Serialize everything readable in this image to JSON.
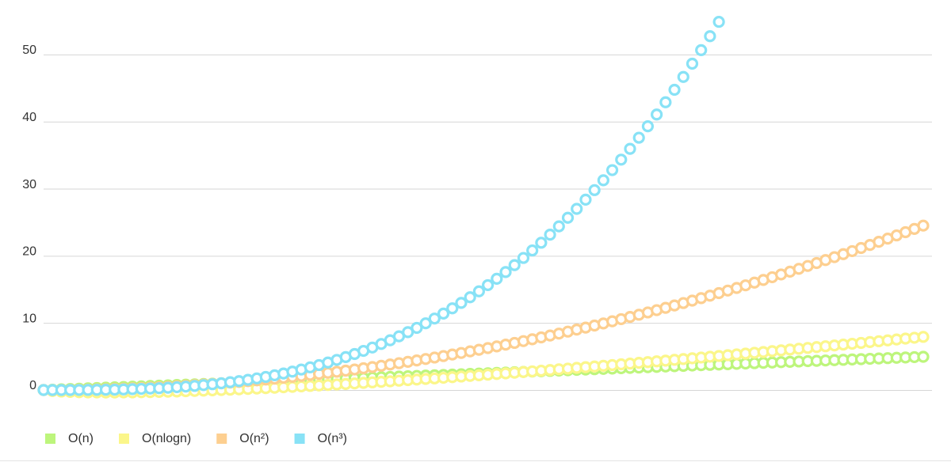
{
  "chart_data": {
    "type": "line",
    "markers": "circle",
    "grid": true,
    "legend": "bottom-left",
    "ylim": [
      0,
      56
    ],
    "yticks": [
      0,
      10,
      20,
      30,
      40,
      50
    ],
    "xlim": [
      0,
      4.95
    ],
    "x": [
      0,
      0.05,
      0.1,
      0.15,
      0.2,
      0.25,
      0.3,
      0.35,
      0.4,
      0.45,
      0.5,
      0.55,
      0.6,
      0.65,
      0.7,
      0.75,
      0.8,
      0.85,
      0.9,
      0.95,
      1,
      1.05,
      1.1,
      1.15,
      1.2,
      1.25,
      1.3,
      1.35,
      1.4,
      1.45,
      1.5,
      1.55,
      1.6,
      1.65,
      1.7,
      1.75,
      1.8,
      1.85,
      1.9,
      1.95,
      2,
      2.05,
      2.1,
      2.15,
      2.2,
      2.25,
      2.3,
      2.35,
      2.4,
      2.45,
      2.5,
      2.55,
      2.6,
      2.65,
      2.7,
      2.75,
      2.8,
      2.85,
      2.9,
      2.95,
      3,
      3.05,
      3.1,
      3.15,
      3.2,
      3.25,
      3.3,
      3.35,
      3.4,
      3.45,
      3.5,
      3.55,
      3.6,
      3.65,
      3.7,
      3.75,
      3.8,
      3.85,
      3.9,
      3.95,
      4,
      4.05,
      4.1,
      4.15,
      4.2,
      4.25,
      4.3,
      4.35,
      4.4,
      4.45,
      4.5,
      4.55,
      4.6,
      4.65,
      4.7,
      4.75,
      4.8,
      4.85,
      4.9,
      4.95
    ],
    "series": [
      {
        "name": "O(n)",
        "color": "#bdf57c",
        "values": [
          0,
          0.05,
          0.1,
          0.15,
          0.2,
          0.25,
          0.3,
          0.35,
          0.4,
          0.45,
          0.5,
          0.55,
          0.6,
          0.65,
          0.7,
          0.75,
          0.8,
          0.85,
          0.9,
          0.95,
          1,
          1.05,
          1.1,
          1.15,
          1.2,
          1.25,
          1.3,
          1.35,
          1.4,
          1.45,
          1.5,
          1.55,
          1.6,
          1.65,
          1.7,
          1.75,
          1.8,
          1.85,
          1.9,
          1.95,
          2,
          2.05,
          2.1,
          2.15,
          2.2,
          2.25,
          2.3,
          2.35,
          2.4,
          2.45,
          2.5,
          2.55,
          2.6,
          2.65,
          2.7,
          2.75,
          2.8,
          2.85,
          2.9,
          2.95,
          3,
          3.05,
          3.1,
          3.15,
          3.2,
          3.25,
          3.3,
          3.35,
          3.4,
          3.45,
          3.5,
          3.55,
          3.6,
          3.65,
          3.7,
          3.75,
          3.8,
          3.85,
          3.9,
          3.95,
          4,
          4.05,
          4.1,
          4.15,
          4.2,
          4.25,
          4.3,
          4.35,
          4.4,
          4.45,
          4.5,
          4.55,
          4.6,
          4.65,
          4.7,
          4.75,
          4.8,
          4.85,
          4.9,
          4.95
        ]
      },
      {
        "name": "O(nlogn)",
        "color": "#fbf68a",
        "values": [
          0,
          -0.15,
          -0.23,
          -0.28,
          -0.32,
          -0.35,
          -0.36,
          -0.37,
          -0.37,
          -0.36,
          -0.35,
          -0.33,
          -0.31,
          -0.28,
          -0.25,
          -0.22,
          -0.18,
          -0.14,
          -0.09,
          -0.05,
          0,
          0.05,
          0.1,
          0.16,
          0.22,
          0.28,
          0.34,
          0.41,
          0.47,
          0.54,
          0.61,
          0.68,
          0.75,
          0.83,
          0.9,
          0.98,
          1.06,
          1.14,
          1.22,
          1.3,
          1.39,
          1.47,
          1.56,
          1.65,
          1.73,
          1.82,
          1.92,
          2.01,
          2.1,
          2.2,
          2.29,
          2.39,
          2.48,
          2.58,
          2.68,
          2.78,
          2.88,
          2.98,
          3.09,
          3.19,
          3.3,
          3.4,
          3.51,
          3.61,
          3.72,
          3.83,
          3.94,
          4.05,
          4.16,
          4.27,
          4.38,
          4.5,
          4.61,
          4.73,
          4.84,
          4.96,
          5.07,
          5.19,
          5.31,
          5.43,
          5.55,
          5.66,
          5.79,
          5.91,
          6.03,
          6.15,
          6.27,
          6.4,
          6.52,
          6.64,
          6.77,
          6.89,
          7.02,
          7.15,
          7.27,
          7.4,
          7.53,
          7.66,
          7.79,
          7.92
        ]
      },
      {
        "name": "O(n²)",
        "color": "#fdcf90",
        "values": [
          0,
          0,
          0.01,
          0.02,
          0.04,
          0.06,
          0.09,
          0.12,
          0.16,
          0.2,
          0.25,
          0.3,
          0.36,
          0.42,
          0.49,
          0.56,
          0.64,
          0.72,
          0.81,
          0.9,
          1,
          1.1,
          1.21,
          1.32,
          1.44,
          1.56,
          1.69,
          1.82,
          1.96,
          2.1,
          2.25,
          2.4,
          2.56,
          2.72,
          2.89,
          3.06,
          3.24,
          3.42,
          3.61,
          3.8,
          4,
          4.2,
          4.41,
          4.62,
          4.84,
          5.06,
          5.29,
          5.52,
          5.76,
          6,
          6.25,
          6.5,
          6.76,
          7.02,
          7.29,
          7.56,
          7.84,
          8.12,
          8.41,
          8.7,
          9,
          9.3,
          9.61,
          9.92,
          10.24,
          10.56,
          10.89,
          11.22,
          11.56,
          11.9,
          12.25,
          12.6,
          12.96,
          13.32,
          13.69,
          14.06,
          14.44,
          14.82,
          15.21,
          15.6,
          16,
          16.4,
          16.81,
          17.22,
          17.64,
          18.06,
          18.49,
          18.92,
          19.36,
          19.8,
          20.25,
          20.7,
          21.16,
          21.62,
          22.09,
          22.56,
          23.04,
          23.52,
          24.01,
          24.5
        ]
      },
      {
        "name": "O(n³)",
        "color": "#88e2f6",
        "values": [
          0,
          0,
          0,
          0,
          0.01,
          0.02,
          0.03,
          0.04,
          0.06,
          0.09,
          0.13,
          0.17,
          0.22,
          0.27,
          0.34,
          0.42,
          0.51,
          0.61,
          0.73,
          0.86,
          1,
          1.16,
          1.33,
          1.52,
          1.73,
          1.95,
          2.2,
          2.46,
          2.74,
          3.05,
          3.38,
          3.72,
          4.1,
          4.49,
          4.91,
          5.36,
          5.83,
          6.33,
          6.86,
          7.41,
          8,
          8.62,
          9.26,
          9.94,
          10.65,
          11.39,
          12.17,
          12.98,
          13.82,
          14.71,
          15.63,
          16.58,
          17.58,
          18.61,
          19.68,
          20.8,
          21.95,
          23.15,
          24.39,
          25.67,
          27,
          28.37,
          29.79,
          31.26,
          32.77,
          34.33,
          35.94,
          37.6,
          39.3,
          41.06,
          42.88,
          44.74,
          46.66,
          48.63,
          50.65,
          52.73,
          54.87,
          null,
          null,
          null,
          null,
          null,
          null,
          null,
          null,
          null,
          null,
          null,
          null,
          null,
          null,
          null,
          null,
          null,
          null,
          null,
          null,
          null,
          null,
          null
        ]
      }
    ]
  }
}
